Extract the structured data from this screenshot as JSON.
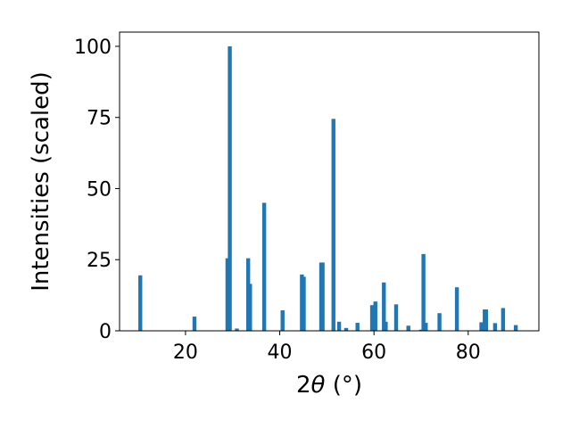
{
  "chart_data": {
    "type": "bar",
    "xlabel_prefix": "2",
    "xlabel_symbol": "θ",
    "xlabel_suffix": " (°)",
    "ylabel": "Intensities (scaled)",
    "xlim": [
      6,
      95
    ],
    "ylim": [
      0,
      105
    ],
    "xticks": [
      20,
      40,
      60,
      80
    ],
    "yticks": [
      0,
      25,
      50,
      75,
      100
    ],
    "grid": false,
    "bar_color": "#1f77b4",
    "x": [
      10.4,
      21.9,
      28.9,
      29.4,
      30.9,
      33.3,
      33.7,
      36.7,
      40.6,
      44.7,
      45.1,
      48.8,
      49.1,
      51.4,
      52.6,
      54.1,
      56.5,
      59.6,
      59.9,
      60.3,
      62.1,
      62.5,
      64.7,
      67.3,
      70.0,
      70.5,
      71.0,
      73.9,
      77.6,
      82.8,
      83.5,
      83.8,
      85.7,
      87.4,
      90.1
    ],
    "values": [
      19.5,
      5,
      25.5,
      100,
      0.8,
      25.5,
      16.5,
      45,
      7.2,
      19.8,
      19,
      24,
      24,
      74.5,
      3.2,
      1,
      2.8,
      9,
      9,
      10.3,
      17,
      3.2,
      9.3,
      1.8,
      0.4,
      27,
      2.8,
      6.2,
      15.3,
      3,
      7.5,
      7.5,
      2.7,
      8,
      2
    ]
  }
}
